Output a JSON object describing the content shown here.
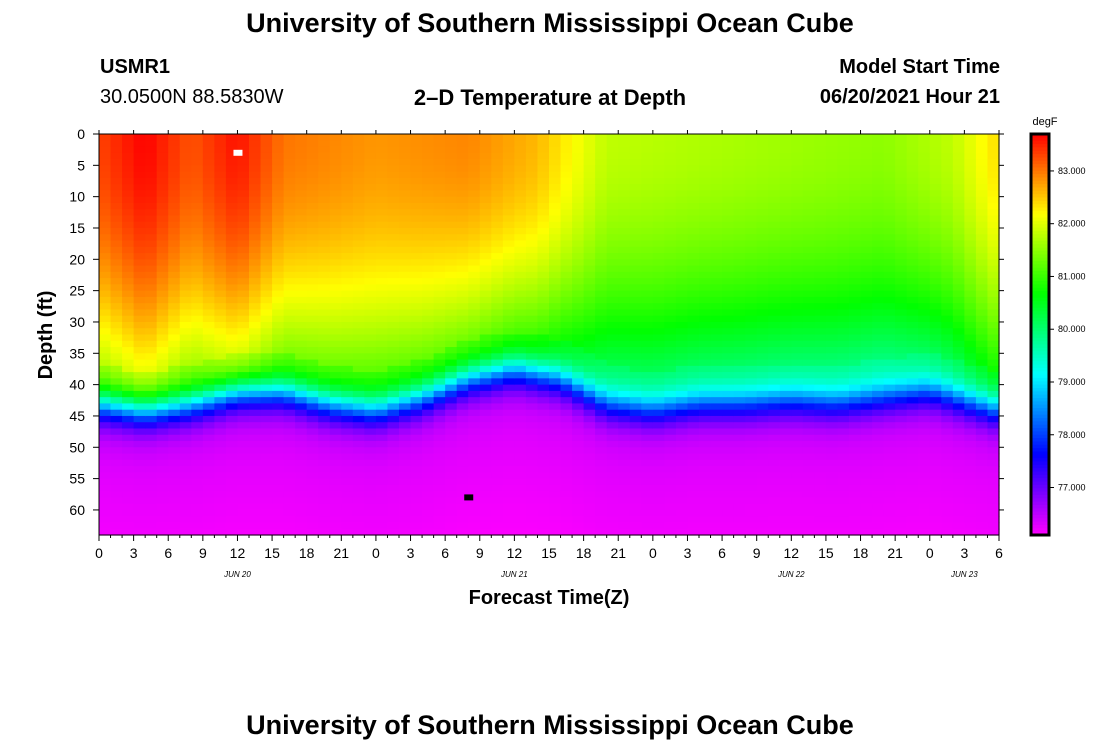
{
  "page": {
    "title_top": "University of Southern Mississippi Ocean Cube",
    "title_bottom": "University of Southern Mississippi Ocean Cube",
    "station_id": "USMR1",
    "station_coords": "30.0500N  88.5830W",
    "plot_title": "2–D Temperature at Depth",
    "model_start_label": "Model Start Time",
    "model_start_value": "06/20/2021 Hour 21"
  },
  "chart_data": {
    "type": "heatmap",
    "title": "2–D Temperature at Depth",
    "xlabel": "Forecast Time(Z)",
    "ylabel": "Depth (ft)",
    "x_range_hours": [
      0,
      78
    ],
    "y_range_ft": [
      0,
      64
    ],
    "x_ticks": [
      {
        "h": 0,
        "label": "0"
      },
      {
        "h": 3,
        "label": "3"
      },
      {
        "h": 6,
        "label": "6"
      },
      {
        "h": 9,
        "label": "9"
      },
      {
        "h": 12,
        "label": "12"
      },
      {
        "h": 15,
        "label": "15"
      },
      {
        "h": 18,
        "label": "18"
      },
      {
        "h": 21,
        "label": "21"
      },
      {
        "h": 24,
        "label": "0"
      },
      {
        "h": 27,
        "label": "3"
      },
      {
        "h": 30,
        "label": "6"
      },
      {
        "h": 33,
        "label": "9"
      },
      {
        "h": 36,
        "label": "12"
      },
      {
        "h": 39,
        "label": "15"
      },
      {
        "h": 42,
        "label": "18"
      },
      {
        "h": 45,
        "label": "21"
      },
      {
        "h": 48,
        "label": "0"
      },
      {
        "h": 51,
        "label": "3"
      },
      {
        "h": 54,
        "label": "6"
      },
      {
        "h": 57,
        "label": "9"
      },
      {
        "h": 60,
        "label": "12"
      },
      {
        "h": 63,
        "label": "15"
      },
      {
        "h": 66,
        "label": "18"
      },
      {
        "h": 69,
        "label": "21"
      },
      {
        "h": 72,
        "label": "0"
      },
      {
        "h": 75,
        "label": "3"
      },
      {
        "h": 78,
        "label": "6"
      }
    ],
    "date_labels": [
      {
        "h": 12,
        "label": "JUN 20"
      },
      {
        "h": 36,
        "label": "JUN 21"
      },
      {
        "h": 60,
        "label": "JUN 22"
      },
      {
        "h": 75,
        "label": "JUN 23"
      }
    ],
    "y_ticks": [
      0,
      5,
      10,
      15,
      20,
      25,
      30,
      35,
      40,
      45,
      50,
      55,
      60
    ],
    "colorbar": {
      "unit": "degF",
      "min": 76.1,
      "max": 83.7,
      "labels": [
        {
          "value": 83.0,
          "label": "83.000"
        },
        {
          "value": 82.0,
          "label": "82.000"
        },
        {
          "value": 81.0,
          "label": "81.000"
        },
        {
          "value": 80.0,
          "label": "80.000"
        },
        {
          "value": 79.0,
          "label": "79.000"
        },
        {
          "value": 78.0,
          "label": "78.000"
        },
        {
          "value": 77.0,
          "label": "77.000"
        }
      ]
    },
    "markers": [
      {
        "name": "max-marker",
        "h": 12,
        "depth": 3,
        "color": "#ffffff"
      },
      {
        "name": "min-marker",
        "h": 32,
        "depth": 58,
        "color": "#000000"
      }
    ],
    "surface_temp_by_hour": [
      {
        "h": 0,
        "t": 83.3
      },
      {
        "h": 4,
        "t": 83.7
      },
      {
        "h": 8,
        "t": 83.2
      },
      {
        "h": 12,
        "t": 83.6
      },
      {
        "h": 16,
        "t": 83.0
      },
      {
        "h": 24,
        "t": 82.8
      },
      {
        "h": 32,
        "t": 82.9
      },
      {
        "h": 38,
        "t": 82.6
      },
      {
        "h": 44,
        "t": 81.8
      },
      {
        "h": 52,
        "t": 81.7
      },
      {
        "h": 60,
        "t": 81.6
      },
      {
        "h": 68,
        "t": 81.5
      },
      {
        "h": 74,
        "t": 81.8
      },
      {
        "h": 78,
        "t": 82.4
      }
    ],
    "thermocline_depth_by_hour": [
      {
        "h": 0,
        "d": 43
      },
      {
        "h": 4,
        "d": 44
      },
      {
        "h": 8,
        "d": 43
      },
      {
        "h": 12,
        "d": 41
      },
      {
        "h": 16,
        "d": 41
      },
      {
        "h": 20,
        "d": 43
      },
      {
        "h": 24,
        "d": 44
      },
      {
        "h": 28,
        "d": 42
      },
      {
        "h": 32,
        "d": 39
      },
      {
        "h": 36,
        "d": 37.5
      },
      {
        "h": 40,
        "d": 39
      },
      {
        "h": 44,
        "d": 43
      },
      {
        "h": 48,
        "d": 44
      },
      {
        "h": 52,
        "d": 43
      },
      {
        "h": 56,
        "d": 43
      },
      {
        "h": 60,
        "d": 42.5
      },
      {
        "h": 64,
        "d": 43
      },
      {
        "h": 68,
        "d": 42
      },
      {
        "h": 72,
        "d": 41
      },
      {
        "h": 76,
        "d": 43
      },
      {
        "h": 78,
        "d": 44
      }
    ],
    "bottom_temp": 76.3
  }
}
